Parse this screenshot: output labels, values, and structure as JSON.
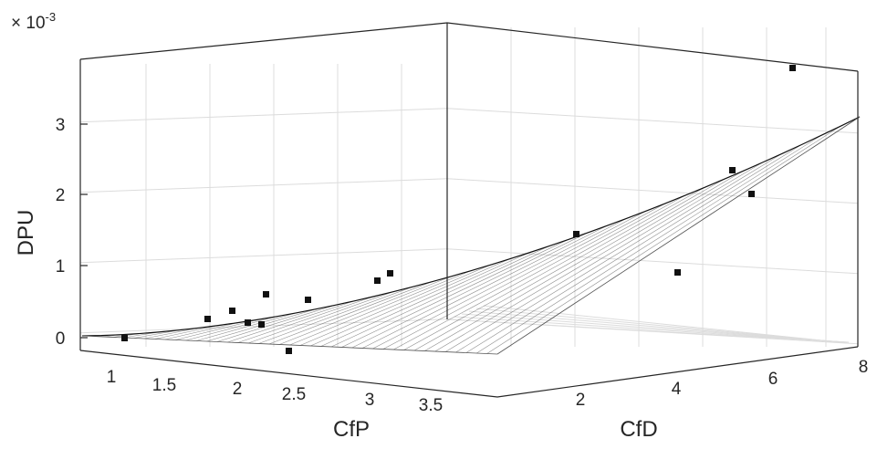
{
  "chart_data": {
    "type": "surface3d-scatter",
    "zlabel": "DPU",
    "xlabel": "CfP",
    "ylabel": "CfD",
    "zexponent": "×10-3",
    "z_multiplier_label": "× 10",
    "z_multiplier_exp": "-3",
    "x_ticks": [
      "1",
      "1.5",
      "2",
      "2.5",
      "3",
      "3.5"
    ],
    "y_ticks": [
      "2",
      "4",
      "6",
      "8"
    ],
    "z_ticks": [
      "0",
      "1",
      "2",
      "3"
    ],
    "xlim": [
      0.8,
      3.7
    ],
    "ylim": [
      0.5,
      8.2
    ],
    "zlim": [
      -0.2,
      3.8
    ],
    "grid": true,
    "surface_color": "#000000",
    "points_color": "#111111",
    "points": [
      {
        "x": 0.9,
        "y": 0.8,
        "z": 0.0
      },
      {
        "x": 1.3,
        "y": 0.8,
        "z": 0.27
      },
      {
        "x": 1.5,
        "y": 1.0,
        "z": 0.38
      },
      {
        "x": 1.7,
        "y": 0.9,
        "z": 0.2
      },
      {
        "x": 1.8,
        "y": 1.0,
        "z": 0.2
      },
      {
        "x": 1.9,
        "y": 1.1,
        "z": 0.6
      },
      {
        "x": 2.2,
        "y": 0.8,
        "z": -0.2
      },
      {
        "x": 2.1,
        "y": 1.5,
        "z": 0.55
      },
      {
        "x": 2.6,
        "y": 1.6,
        "z": 0.8
      },
      {
        "x": 2.7,
        "y": 1.7,
        "z": 0.9
      },
      {
        "x": 3.0,
        "y": 3.5,
        "z": 1.45
      },
      {
        "x": 3.4,
        "y": 4.4,
        "z": 0.95
      },
      {
        "x": 3.4,
        "y": 6.0,
        "z": 2.35
      },
      {
        "x": 3.5,
        "y": 6.5,
        "z": 2.05
      },
      {
        "x": 3.6,
        "y": 7.0,
        "z": 3.8
      }
    ]
  }
}
